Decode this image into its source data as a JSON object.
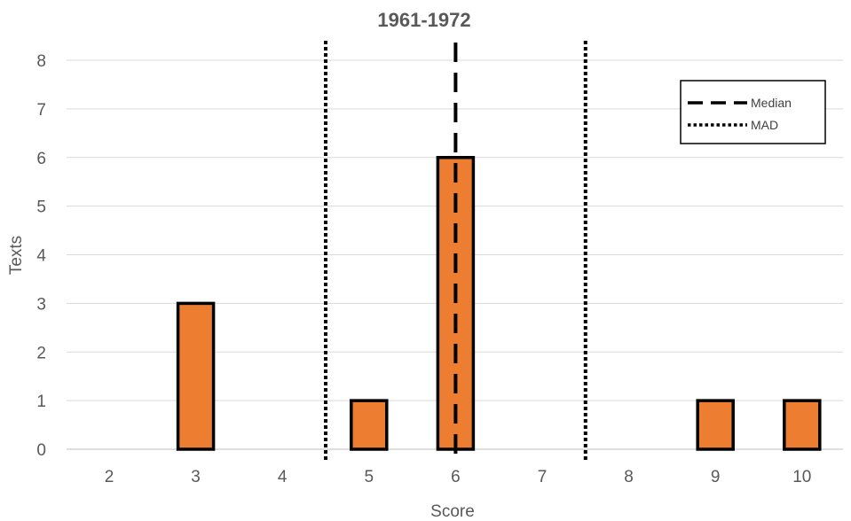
{
  "chart_data": {
    "type": "bar",
    "title": "1961-1972",
    "xlabel": "Score",
    "ylabel": "Texts",
    "categories": [
      "2",
      "3",
      "4",
      "5",
      "6",
      "7",
      "8",
      "9",
      "10"
    ],
    "values": [
      0,
      3,
      0,
      1,
      6,
      0,
      0,
      1,
      1
    ],
    "ylim": [
      0,
      8
    ],
    "yticks": [
      "0",
      "1",
      "2",
      "3",
      "4",
      "5",
      "6",
      "7",
      "8"
    ],
    "grid": true,
    "bar_color": "#ED7D31",
    "bar_edge_color": "#000000",
    "reference_lines": [
      {
        "name": "Median",
        "style": "dashed",
        "x": 6
      },
      {
        "name": "MAD",
        "style": "dotted",
        "x": 4.5
      },
      {
        "name": "MAD",
        "style": "dotted",
        "x": 7.5
      }
    ],
    "legend": {
      "position": "top-right",
      "entries": [
        {
          "label": "Median",
          "style": "dashed"
        },
        {
          "label": "MAD",
          "style": "dotted"
        }
      ]
    }
  }
}
